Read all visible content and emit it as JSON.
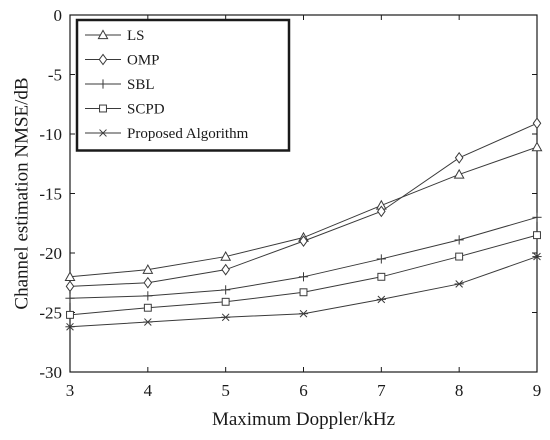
{
  "chart_data": {
    "type": "line",
    "xlabel": "Maximum Doppler/kHz",
    "ylabel": "Channel estimation NMSE/dB",
    "xlim": [
      3,
      9
    ],
    "ylim": [
      -30,
      0
    ],
    "xticks": [
      3,
      4,
      5,
      6,
      7,
      8,
      9
    ],
    "yticks": [
      0,
      -5,
      -10,
      -15,
      -20,
      -25,
      -30
    ],
    "x": [
      3,
      4,
      5,
      6,
      7,
      8,
      9
    ],
    "grid": false,
    "legend_position": "top-left",
    "series": [
      {
        "name": "LS",
        "marker": "triangle",
        "values": [
          -22.0,
          -21.4,
          -20.3,
          -18.7,
          -16.0,
          -13.4,
          -11.1
        ]
      },
      {
        "name": "OMP",
        "marker": "diamond",
        "values": [
          -22.8,
          -22.5,
          -21.4,
          -19.0,
          -16.5,
          -12.0,
          -9.1
        ]
      },
      {
        "name": "SBL",
        "marker": "plus",
        "values": [
          -23.8,
          -23.6,
          -23.1,
          -22.0,
          -20.5,
          -18.9,
          -17.0
        ]
      },
      {
        "name": "SCPD",
        "marker": "square",
        "values": [
          -25.2,
          -24.6,
          -24.1,
          -23.3,
          -22.0,
          -20.3,
          -18.5
        ]
      },
      {
        "name": "Proposed Algorithm",
        "marker": "asterisk",
        "values": [
          -26.2,
          -25.8,
          -25.4,
          -25.1,
          -23.9,
          -22.6,
          -20.3
        ]
      }
    ],
    "line_color": "#3a3a3a"
  }
}
